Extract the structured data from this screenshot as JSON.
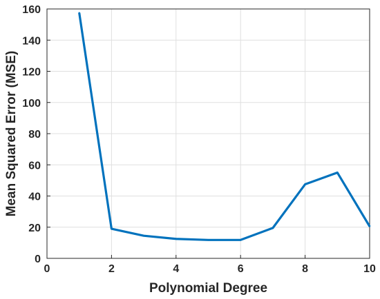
{
  "chart_data": {
    "type": "line",
    "title": "",
    "xlabel": "Polynomial Degree",
    "ylabel": "Mean Squared Error (MSE)",
    "xlim": [
      0,
      10
    ],
    "ylim": [
      0,
      160
    ],
    "xticks": [
      0,
      2,
      4,
      6,
      8,
      10
    ],
    "yticks": [
      0,
      20,
      40,
      60,
      80,
      100,
      120,
      140,
      160
    ],
    "grid": true,
    "legend": "none",
    "series": [
      {
        "color": "#0072BD",
        "x": [
          1,
          2,
          3,
          4,
          5,
          6,
          7,
          8,
          9,
          10
        ],
        "y": [
          157.5,
          19,
          14.5,
          12.5,
          11.8,
          11.8,
          19.5,
          47.5,
          55,
          20.5
        ]
      }
    ]
  }
}
